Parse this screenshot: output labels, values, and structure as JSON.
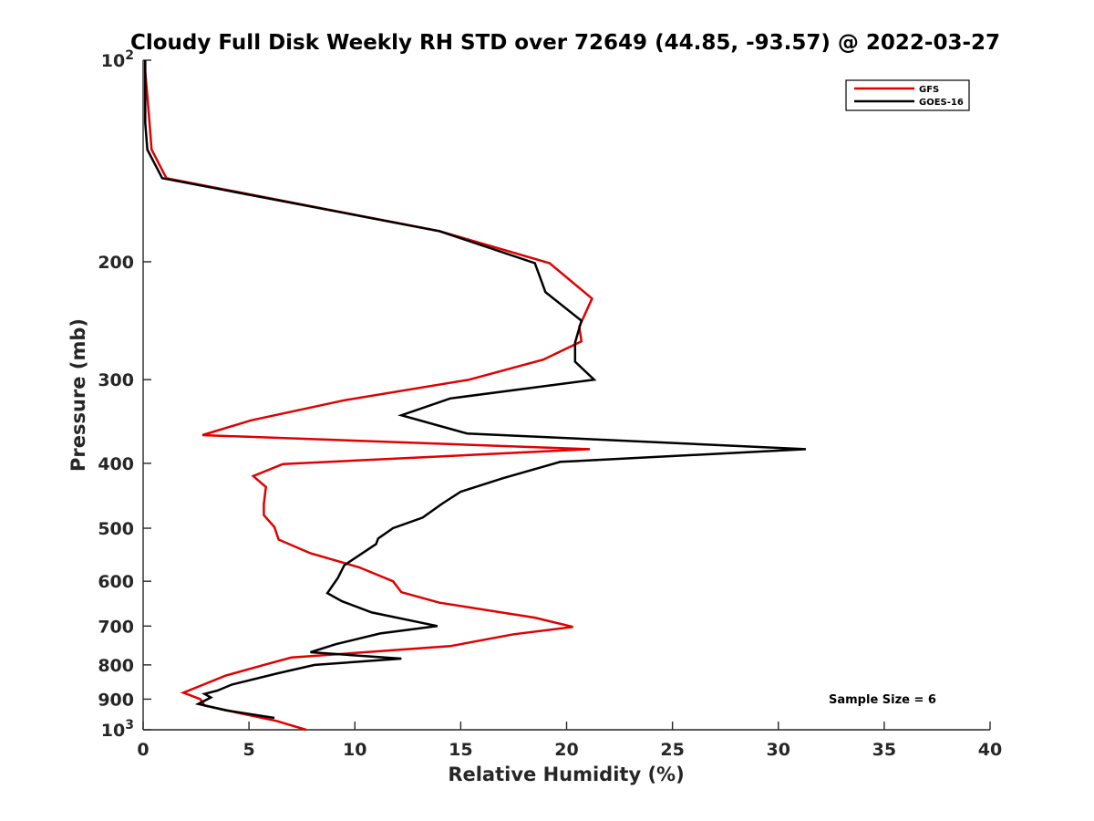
{
  "chart_data": {
    "type": "line",
    "title": "Cloudy Full Disk Weekly RH STD over 72649 (44.85, -93.57) @ 2022-03-27",
    "xlabel": "Relative Humidity (%)",
    "ylabel": "Pressure (mb)",
    "xlim": [
      0,
      40
    ],
    "ylim": [
      100,
      1000
    ],
    "y_scale": "log",
    "y_reversed": true,
    "xticks": [
      0,
      5,
      10,
      15,
      20,
      25,
      30,
      35,
      40
    ],
    "yticks": [
      {
        "value": 100,
        "label": "10",
        "sup": "2"
      },
      {
        "value": 200,
        "label": "200",
        "sup": ""
      },
      {
        "value": 300,
        "label": "300",
        "sup": ""
      },
      {
        "value": 400,
        "label": "400",
        "sup": ""
      },
      {
        "value": 500,
        "label": "500",
        "sup": ""
      },
      {
        "value": 600,
        "label": "600",
        "sup": ""
      },
      {
        "value": 700,
        "label": "700",
        "sup": ""
      },
      {
        "value": 800,
        "label": "800",
        "sup": ""
      },
      {
        "value": 900,
        "label": "900",
        "sup": ""
      },
      {
        "value": 1000,
        "label": "10",
        "sup": "3"
      }
    ],
    "grid": false,
    "legend_position": "top-right",
    "annotation": "Sample Size = 6",
    "series": [
      {
        "name": "GFS",
        "color": "#e00000",
        "points": [
          [
            0.1,
            100
          ],
          [
            0.1,
            104
          ],
          [
            0.2,
            113
          ],
          [
            0.3,
            124
          ],
          [
            0.4,
            136
          ],
          [
            1.1,
            150
          ],
          [
            14,
            180
          ],
          [
            19.2,
            201
          ],
          [
            21.2,
            227
          ],
          [
            20.6,
            250
          ],
          [
            20.7,
            263
          ],
          [
            18.9,
            280
          ],
          [
            15.4,
            300
          ],
          [
            9.5,
            322
          ],
          [
            5.1,
            345
          ],
          [
            2.8,
            363
          ],
          [
            21.1,
            381
          ],
          [
            6.6,
            401
          ],
          [
            5.2,
            418
          ],
          [
            5.8,
            434
          ],
          [
            5.7,
            460
          ],
          [
            5.7,
            478
          ],
          [
            6.2,
            498
          ],
          [
            6.4,
            520
          ],
          [
            7.9,
            545
          ],
          [
            10.2,
            572
          ],
          [
            11.8,
            600
          ],
          [
            12.2,
            623
          ],
          [
            14,
            646
          ],
          [
            18.5,
            680
          ],
          [
            20.3,
            702
          ],
          [
            17.5,
            720
          ],
          [
            14.5,
            750
          ],
          [
            7,
            780
          ],
          [
            5.7,
            800
          ],
          [
            3.9,
            830
          ],
          [
            2.7,
            860
          ],
          [
            1.9,
            880
          ],
          [
            2.7,
            900
          ],
          [
            2.9,
            920
          ],
          [
            4.4,
            942
          ],
          [
            6.3,
            970
          ],
          [
            7.7,
            1000
          ]
        ]
      },
      {
        "name": "GOES-16",
        "color": "#000000",
        "points": [
          [
            0.1,
            100
          ],
          [
            0.1,
            104
          ],
          [
            0.1,
            113
          ],
          [
            0.1,
            124
          ],
          [
            0.2,
            136
          ],
          [
            0.9,
            150
          ],
          [
            14,
            180
          ],
          [
            18.5,
            201
          ],
          [
            19,
            222
          ],
          [
            20.7,
            245
          ],
          [
            20.4,
            264
          ],
          [
            20.4,
            282
          ],
          [
            21.3,
            300
          ],
          [
            14.5,
            320
          ],
          [
            12.2,
            339
          ],
          [
            15.3,
            361
          ],
          [
            31.3,
            381
          ],
          [
            19.7,
            398
          ],
          [
            17,
            421
          ],
          [
            15,
            441
          ],
          [
            14.1,
            460
          ],
          [
            13.2,
            482
          ],
          [
            11.8,
            500
          ],
          [
            11.1,
            518
          ],
          [
            11,
            528
          ],
          [
            9.5,
            568
          ],
          [
            9.2,
            593
          ],
          [
            8.7,
            625
          ],
          [
            9.4,
            643
          ],
          [
            10.8,
            668
          ],
          [
            13.9,
            700
          ],
          [
            11.2,
            718
          ],
          [
            9.1,
            745
          ],
          [
            7.9,
            766
          ],
          [
            12.2,
            783
          ],
          [
            8.1,
            800
          ],
          [
            6.4,
            823
          ],
          [
            4.2,
            856
          ],
          [
            3.5,
            874
          ],
          [
            2.9,
            884
          ],
          [
            3.2,
            895
          ],
          [
            2.6,
            915
          ],
          [
            3.9,
            935
          ],
          [
            6.2,
            960
          ]
        ]
      }
    ]
  }
}
